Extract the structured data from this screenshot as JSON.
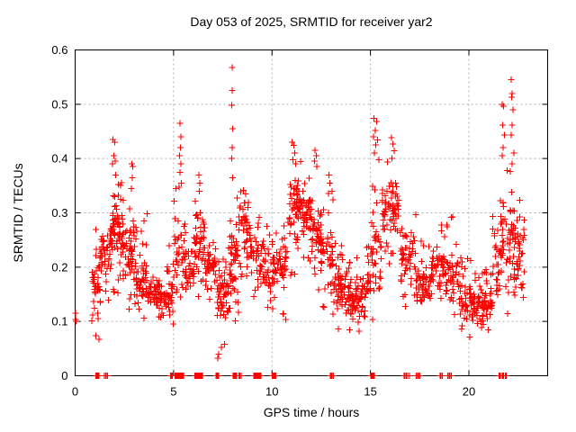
{
  "window": {
    "title": "Day 053 of 2025, SRMTID for receiver yar2"
  },
  "chart_data": {
    "type": "scatter",
    "title": "Day 053 of 2025, SRMTID for receiver yar2",
    "xlabel": "GPS time / hours",
    "ylabel": "SRMTID / TECUs",
    "xlim": [
      0,
      24
    ],
    "ylim": [
      0,
      0.6
    ],
    "xticks": [
      0,
      5,
      10,
      15,
      20
    ],
    "yticks": [
      0,
      0.1,
      0.2,
      0.3,
      0.4,
      0.5,
      0.6
    ],
    "grid": "dashed-major",
    "grid_color": "#b0b0b0",
    "legend": "none",
    "marker": "plus",
    "marker_color": "#ff0000",
    "marker_size_px": 7,
    "background": "#ffffff",
    "border_color": "#000000",
    "clusters_format": [
      "t_start_h",
      "t_end_h",
      "n_points",
      "y_min",
      "y_max",
      "y_core_low",
      "y_core_high"
    ],
    "clusters": [
      [
        0.85,
        1.3,
        40,
        0.04,
        0.27,
        0.09,
        0.22
      ],
      [
        1.3,
        1.8,
        38,
        0.1,
        0.31,
        0.17,
        0.28
      ],
      [
        1.8,
        2.45,
        80,
        0.15,
        0.37,
        0.22,
        0.32
      ],
      [
        2.45,
        3.1,
        55,
        0.12,
        0.34,
        0.16,
        0.29
      ],
      [
        3.1,
        3.7,
        50,
        0.1,
        0.3,
        0.13,
        0.21
      ],
      [
        3.7,
        4.4,
        55,
        0.06,
        0.2,
        0.12,
        0.17
      ],
      [
        4.4,
        5.0,
        42,
        0.08,
        0.24,
        0.11,
        0.17
      ],
      [
        5.0,
        5.6,
        42,
        0.12,
        0.35,
        0.14,
        0.3
      ],
      [
        5.6,
        6.1,
        38,
        0.13,
        0.3,
        0.15,
        0.25
      ],
      [
        6.1,
        6.6,
        45,
        0.14,
        0.34,
        0.19,
        0.3
      ],
      [
        6.6,
        7.2,
        48,
        0.12,
        0.3,
        0.15,
        0.25
      ],
      [
        7.2,
        7.8,
        60,
        0.03,
        0.26,
        0.1,
        0.2
      ],
      [
        7.8,
        8.3,
        52,
        0.1,
        0.34,
        0.12,
        0.28
      ],
      [
        8.3,
        8.9,
        48,
        0.15,
        0.35,
        0.23,
        0.33
      ],
      [
        8.9,
        9.6,
        48,
        0.12,
        0.3,
        0.16,
        0.27
      ],
      [
        9.6,
        10.3,
        52,
        0.1,
        0.28,
        0.15,
        0.25
      ],
      [
        10.3,
        10.9,
        38,
        0.1,
        0.3,
        0.15,
        0.27
      ],
      [
        10.9,
        11.5,
        58,
        0.17,
        0.4,
        0.24,
        0.37
      ],
      [
        11.5,
        12.0,
        48,
        0.2,
        0.39,
        0.25,
        0.35
      ],
      [
        12.0,
        12.5,
        48,
        0.15,
        0.38,
        0.22,
        0.33
      ],
      [
        12.5,
        13.1,
        45,
        0.12,
        0.35,
        0.17,
        0.28
      ],
      [
        13.1,
        13.8,
        60,
        0.08,
        0.25,
        0.12,
        0.2
      ],
      [
        13.8,
        14.5,
        60,
        0.06,
        0.22,
        0.1,
        0.18
      ],
      [
        14.5,
        15.0,
        42,
        0.1,
        0.25,
        0.12,
        0.2
      ],
      [
        15.0,
        15.6,
        42,
        0.1,
        0.37,
        0.15,
        0.3
      ],
      [
        15.6,
        16.5,
        68,
        0.2,
        0.4,
        0.25,
        0.37
      ],
      [
        16.5,
        17.3,
        52,
        0.12,
        0.3,
        0.17,
        0.27
      ],
      [
        17.3,
        18.1,
        60,
        0.1,
        0.25,
        0.13,
        0.2
      ],
      [
        18.1,
        18.8,
        48,
        0.12,
        0.3,
        0.15,
        0.25
      ],
      [
        18.8,
        19.5,
        48,
        0.1,
        0.3,
        0.13,
        0.22
      ],
      [
        19.5,
        20.4,
        65,
        0.07,
        0.22,
        0.1,
        0.17
      ],
      [
        20.4,
        21.2,
        65,
        0.07,
        0.2,
        0.1,
        0.16
      ],
      [
        21.2,
        21.7,
        38,
        0.1,
        0.35,
        0.15,
        0.3
      ],
      [
        21.7,
        22.3,
        50,
        0.1,
        0.38,
        0.15,
        0.35
      ],
      [
        22.3,
        22.85,
        45,
        0.1,
        0.33,
        0.14,
        0.3
      ]
    ],
    "peak_points": [
      [
        0.02,
        0.115
      ],
      [
        0.03,
        0.104
      ],
      [
        0.05,
        0.1
      ],
      [
        1.93,
        0.435
      ],
      [
        2.0,
        0.43
      ],
      [
        1.97,
        0.405
      ],
      [
        2.03,
        0.395
      ],
      [
        1.9,
        0.39
      ],
      [
        2.06,
        0.37
      ],
      [
        2.87,
        0.39
      ],
      [
        2.92,
        0.385
      ],
      [
        2.9,
        0.365
      ],
      [
        2.85,
        0.345
      ],
      [
        5.32,
        0.465
      ],
      [
        5.36,
        0.44
      ],
      [
        5.34,
        0.42
      ],
      [
        5.3,
        0.405
      ],
      [
        5.38,
        0.39
      ],
      [
        5.33,
        0.375
      ],
      [
        5.4,
        0.355
      ],
      [
        6.28,
        0.37
      ],
      [
        6.33,
        0.355
      ],
      [
        6.3,
        0.34
      ],
      [
        7.97,
        0.568
      ],
      [
        7.98,
        0.525
      ],
      [
        7.96,
        0.498
      ],
      [
        7.99,
        0.455
      ],
      [
        7.97,
        0.42
      ],
      [
        7.95,
        0.4
      ],
      [
        7.99,
        0.365
      ],
      [
        11.02,
        0.43
      ],
      [
        11.1,
        0.424
      ],
      [
        11.16,
        0.41
      ],
      [
        11.06,
        0.398
      ],
      [
        11.2,
        0.39
      ],
      [
        12.18,
        0.415
      ],
      [
        12.24,
        0.405
      ],
      [
        12.15,
        0.395
      ],
      [
        12.28,
        0.385
      ],
      [
        12.88,
        0.37
      ],
      [
        12.93,
        0.355
      ],
      [
        15.18,
        0.474
      ],
      [
        15.32,
        0.468
      ],
      [
        15.24,
        0.452
      ],
      [
        15.15,
        0.44
      ],
      [
        15.36,
        0.434
      ],
      [
        15.28,
        0.425
      ],
      [
        15.2,
        0.41
      ],
      [
        15.42,
        0.398
      ],
      [
        16.08,
        0.438
      ],
      [
        16.14,
        0.427
      ],
      [
        16.2,
        0.414
      ],
      [
        16.1,
        0.4
      ],
      [
        21.7,
        0.5
      ],
      [
        21.76,
        0.496
      ],
      [
        21.72,
        0.462
      ],
      [
        21.8,
        0.443
      ],
      [
        21.74,
        0.42
      ],
      [
        21.68,
        0.405
      ],
      [
        22.14,
        0.545
      ],
      [
        22.2,
        0.52
      ],
      [
        22.17,
        0.513
      ],
      [
        22.24,
        0.49
      ],
      [
        22.2,
        0.462
      ],
      [
        22.15,
        0.443
      ],
      [
        22.28,
        0.41
      ],
      [
        22.2,
        0.39
      ],
      [
        22.1,
        0.376
      ]
    ],
    "zero_line_clusters_format": [
      "t_start_h",
      "t_end_h",
      "n_points"
    ],
    "zero_line_clusters": [
      [
        1.05,
        1.2,
        8
      ],
      [
        1.5,
        1.66,
        4
      ],
      [
        4.85,
        4.95,
        3
      ],
      [
        5.08,
        5.28,
        8
      ],
      [
        5.32,
        5.5,
        7
      ],
      [
        6.08,
        6.28,
        7
      ],
      [
        6.32,
        6.48,
        6
      ],
      [
        7.15,
        7.3,
        5
      ],
      [
        8.02,
        8.2,
        7
      ],
      [
        8.32,
        8.45,
        3
      ],
      [
        9.08,
        9.3,
        8
      ],
      [
        9.35,
        9.45,
        3
      ],
      [
        10.02,
        10.2,
        7
      ],
      [
        12.95,
        13.12,
        4
      ],
      [
        15.02,
        15.2,
        7
      ],
      [
        16.7,
        16.98,
        5
      ],
      [
        17.33,
        17.5,
        4
      ],
      [
        18.53,
        18.65,
        3
      ],
      [
        18.93,
        19.1,
        4
      ],
      [
        21.52,
        21.9,
        7
      ]
    ]
  }
}
